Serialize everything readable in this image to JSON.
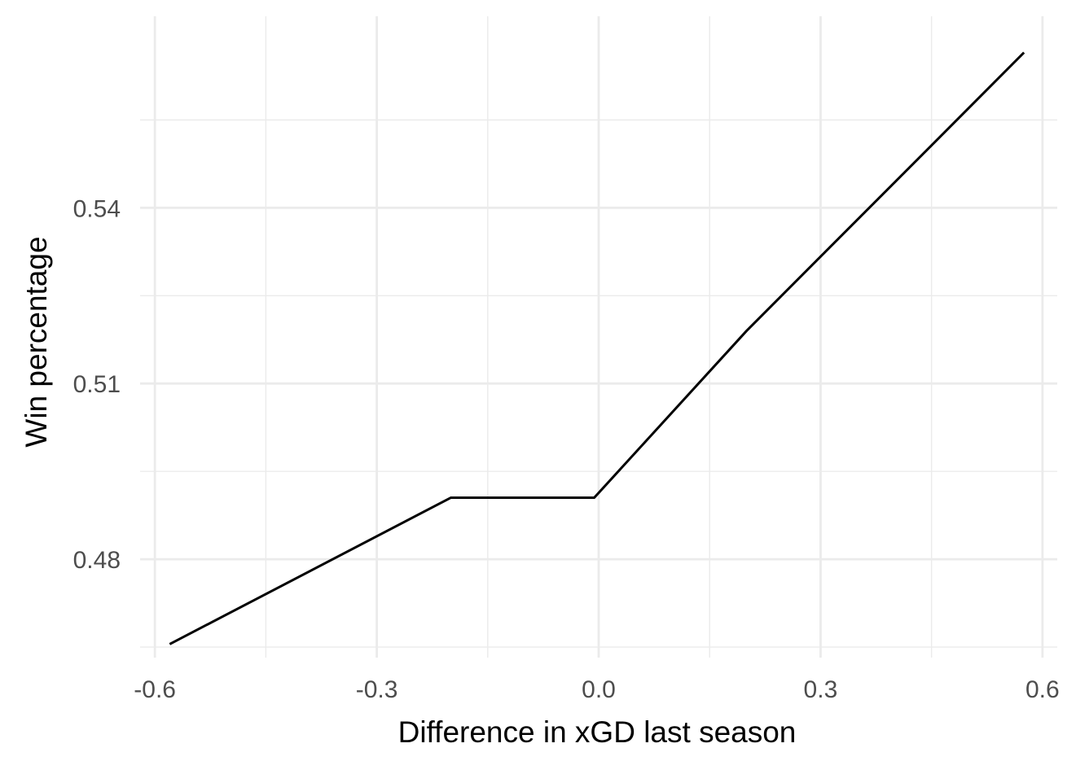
{
  "chart_data": {
    "type": "line",
    "title": "",
    "xlabel": "Difference in xGD last season",
    "ylabel": "Win percentage",
    "xlim": [
      -0.62,
      0.62
    ],
    "ylim": [
      0.4632,
      0.5727
    ],
    "x_ticks": [
      -0.6,
      -0.3,
      0.0,
      0.3,
      0.6
    ],
    "x_tick_labels": [
      "-0.6",
      "-0.3",
      "0.0",
      "0.3",
      "0.6"
    ],
    "y_ticks": [
      0.48,
      0.51,
      0.54
    ],
    "y_tick_labels": [
      "0.48",
      "0.51",
      "0.54"
    ],
    "x_minor_ticks": [
      -0.45,
      -0.15,
      0.15,
      0.45
    ],
    "y_minor_ticks": [
      0.465,
      0.495,
      0.525,
      0.555
    ],
    "grid": true,
    "legend": "none",
    "series": [
      {
        "color": "#000000",
        "x": [
          -0.58,
          -0.2,
          -0.006,
          0.2,
          0.575
        ],
        "y": [
          0.4655,
          0.4905,
          0.4905,
          0.519,
          0.5665
        ]
      }
    ]
  }
}
